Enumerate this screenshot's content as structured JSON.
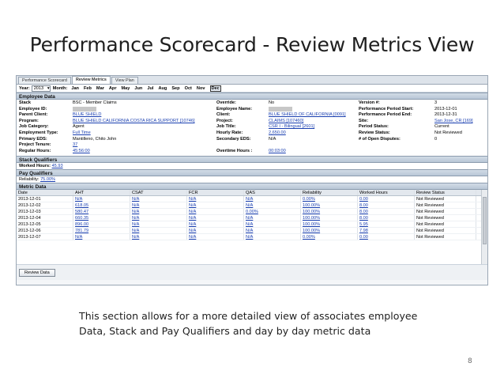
{
  "slide": {
    "title": "Performance Scorecard - Review Metrics View",
    "caption_line1": "This section allows for a more detailed view of associates employee",
    "caption_line2": "Data, Stack and Pay Qualifiers and day by day metric data",
    "page_number": "8"
  },
  "tabs": [
    "Performance Scorecard",
    "Review Metrics",
    "View Plan"
  ],
  "active_tab": "Review Metrics",
  "period": {
    "year_label": "Year:",
    "year_value": "2013",
    "month_label": "Month:",
    "months": [
      "Jan",
      "Feb",
      "Mar",
      "Apr",
      "May",
      "Jun",
      "Jul",
      "Aug",
      "Sep",
      "Oct",
      "Nov",
      "Dec"
    ],
    "selected_month": "Dec"
  },
  "employee_data": {
    "header": "Employee Data",
    "col1": [
      {
        "k": "Stack",
        "v": "BSC - Member Claims",
        "link": false
      },
      {
        "k": "Employee ID:",
        "v": "",
        "link": false,
        "redacted": true
      },
      {
        "k": "Parent Client:",
        "v": "BLUE SHIELD",
        "link": true
      },
      {
        "k": "Program:",
        "v": "BLUE SHIELD CALIFORNIA COSTA RICA SUPPORT [10746]",
        "link": true
      },
      {
        "k": "Job Category:",
        "v": "Agent",
        "link": false
      },
      {
        "k": "Employment Type:",
        "v": "Full Time",
        "link": true
      },
      {
        "k": "Primary EDS:",
        "v": "Mantilleno, Chito John",
        "link": false
      },
      {
        "k": "Project Tenure:",
        "v": "37",
        "link": true
      },
      {
        "k": "Regular Hours:",
        "v": "45:56:00",
        "link": true
      }
    ],
    "col2": [
      {
        "k": "Override:",
        "v": "No",
        "link": false
      },
      {
        "k": "Employee Name:",
        "v": "",
        "link": false,
        "redacted": true
      },
      {
        "k": "Client:",
        "v": "BLUE SHIELD OF CALIFORNIA [0091]",
        "link": true
      },
      {
        "k": "Project:",
        "v": "CLAIMS [107460]",
        "link": true
      },
      {
        "k": "Job Title:",
        "v": "CSR I - Bilingual [2601]",
        "link": true
      },
      {
        "k": "Hourly Rate:",
        "v": "2,650.00",
        "link": true
      },
      {
        "k": "Secondary EDS:",
        "v": "N/A",
        "link": false
      },
      {
        "k": "",
        "v": "",
        "link": false
      },
      {
        "k": "Overtime Hours :",
        "v": "00:03:00",
        "link": true
      }
    ],
    "col3": [
      {
        "k": "Version #:",
        "v": "3",
        "link": false
      },
      {
        "k": "Performance Period Start:",
        "v": "2013-12-01",
        "link": false
      },
      {
        "k": "Performance Period End:",
        "v": "2013-12-31",
        "link": false
      },
      {
        "k": "Site:",
        "v": "San Jose, CR [169]",
        "link": true
      },
      {
        "k": "Period Status:",
        "v": "Current",
        "link": false
      },
      {
        "k": "Review Status:",
        "v": "Not Reviewed",
        "link": false
      },
      {
        "k": "# of Open Disputes:",
        "v": "0",
        "link": false
      }
    ]
  },
  "stack_qualifiers": {
    "header": "Stack Qualifiers",
    "label": "Worked Hours:",
    "value": "45.93"
  },
  "pay_qualifiers": {
    "header": "Pay Qualifiers",
    "label": "Reliability:",
    "value": "75.00%"
  },
  "metric_data": {
    "header": "Metric Data",
    "columns": [
      "Date",
      "AHT",
      "CSAT",
      "FCR",
      "QAS",
      "Reliability",
      "Worked Hours",
      "Review Status"
    ],
    "rows": [
      [
        "2013-12-01",
        "N/A",
        "N/A",
        "N/A",
        "N/A",
        "0.00%",
        "0.00",
        "Not Reviewed"
      ],
      [
        "2013-12-02",
        "618.05",
        "N/A",
        "N/A",
        "N/A",
        "100.00%",
        "8.00",
        "Not Reviewed"
      ],
      [
        "2013-12-03",
        "580.47",
        "N/A",
        "N/A",
        "0.00%",
        "100.00%",
        "8.00",
        "Not Reviewed"
      ],
      [
        "2013-12-04",
        "660.35",
        "N/A",
        "N/A",
        "N/A",
        "100.00%",
        "8.00",
        "Not Reviewed"
      ],
      [
        "2013-12-05",
        "896.00",
        "N/A",
        "N/A",
        "N/A",
        "100.00%",
        "5.95",
        "Not Reviewed"
      ],
      [
        "2013-12-06",
        "781.79",
        "N/A",
        "N/A",
        "N/A",
        "100.00%",
        "7.98",
        "Not Reviewed"
      ],
      [
        "2013-12-07",
        "N/A",
        "N/A",
        "N/A",
        "N/A",
        "0.00%",
        "0.00",
        "Not Reviewed"
      ]
    ]
  },
  "actions": {
    "review_button": "Review Data"
  }
}
